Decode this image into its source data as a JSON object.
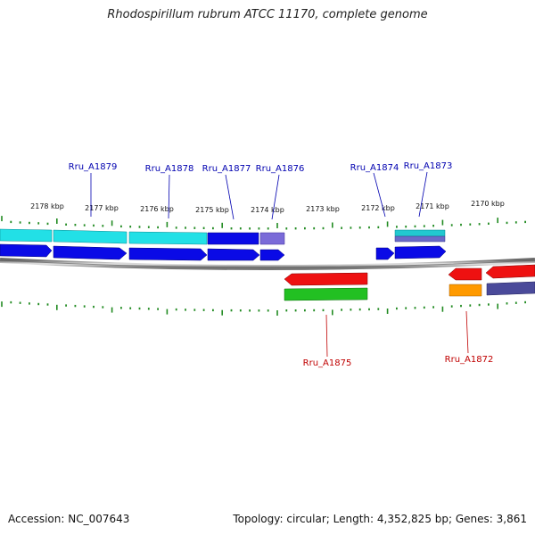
{
  "title": "Rhodospirillum rubrum ATCC 11170, complete genome",
  "footer": {
    "accession": "Accession: NC_007643",
    "summary": "Topology: circular; Length: 4,352,825 bp; Genes: 3,861"
  },
  "ticks": [
    "2178 kbp",
    "2177 kbp",
    "2176 kbp",
    "2175 kbp",
    "2174 kbp",
    "2173 kbp",
    "2172 kbp",
    "2171 kbp",
    "2170 kbp"
  ],
  "labels": {
    "top": [
      "Rru_A1879",
      "Rru_A1878",
      "Rru_A1877",
      "Rru_A1876",
      "Rru_A1874",
      "Rru_A1873"
    ],
    "bottom": [
      "Rru_A1875",
      "Rru_A1872"
    ]
  },
  "colors": {
    "label_forward": "#0000b0",
    "label_reverse": "#c00000",
    "tick": "#228b22",
    "backbone": "#888888",
    "gene_blue": "#0a0ae6",
    "gene_cyan": "#22e0e6",
    "gene_purple": "#7a6ad8",
    "gene_red": "#ee1111",
    "gene_green": "#22c022",
    "gene_orange": "#ff9a00",
    "gene_slate": "#4a4a9a"
  }
}
